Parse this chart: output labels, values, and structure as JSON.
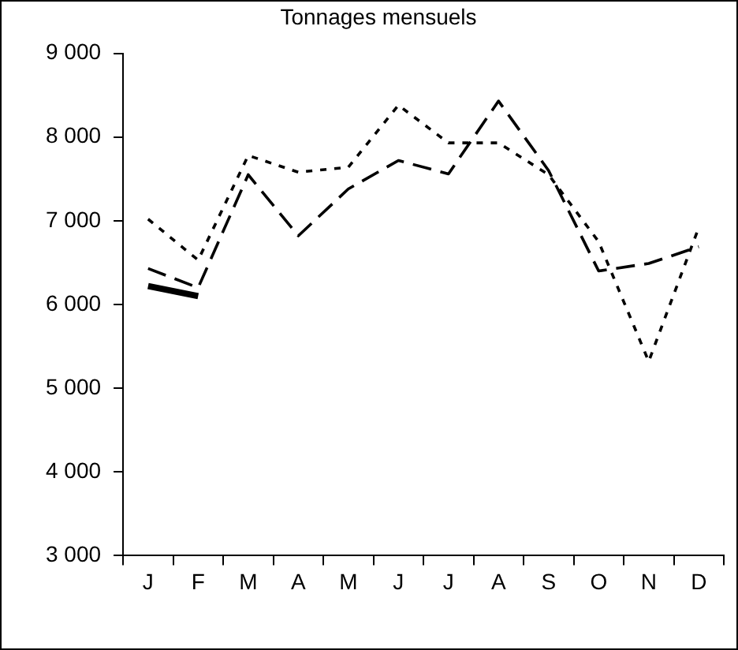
{
  "chart_data": {
    "type": "line",
    "title": "Tonnages mensuels",
    "categories": [
      "J",
      "F",
      "M",
      "A",
      "M",
      "J",
      "J",
      "A",
      "S",
      "O",
      "N",
      "D"
    ],
    "series": [
      {
        "color": "#000000",
        "line_style": "dashed",
        "values": [
          6430,
          6200,
          7550,
          6820,
          7380,
          7720,
          7560,
          8430,
          7600,
          6400,
          6490,
          6690
        ]
      },
      {
        "color": "#000000",
        "line_style": "dotted",
        "values": [
          7020,
          6530,
          7780,
          7580,
          7640,
          8380,
          7930,
          7930,
          7550,
          6750,
          5320,
          6920
        ]
      },
      {
        "color": "#000000",
        "line_style": "solid",
        "values": [
          6220,
          6100,
          null,
          null,
          null,
          null,
          null,
          null,
          null,
          null,
          null,
          null
        ]
      }
    ],
    "ylim": [
      3000,
      9000
    ],
    "yticks": [
      {
        "value": 3000,
        "label": "3 000"
      },
      {
        "value": 4000,
        "label": "4 000"
      },
      {
        "value": 5000,
        "label": "5 000"
      },
      {
        "value": 6000,
        "label": "6 000"
      },
      {
        "value": 7000,
        "label": "7 000"
      },
      {
        "value": 8000,
        "label": "8 000"
      },
      {
        "value": 9000,
        "label": "9 000"
      }
    ],
    "grid": false,
    "legend": false,
    "marker": "none"
  }
}
